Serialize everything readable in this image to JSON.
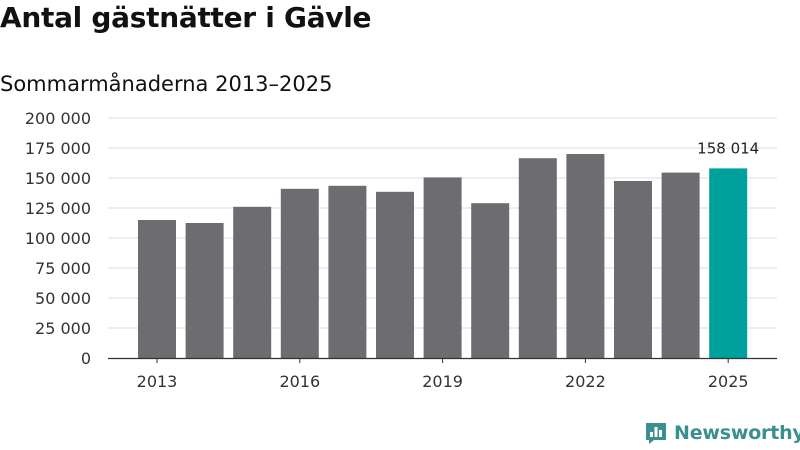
{
  "title": "Antal gästnätter i Gävle",
  "subtitle": "Sommarmånaderna 2013–2025",
  "brand": "Newsworthy",
  "colors": {
    "bar": "#6d6c71",
    "highlight": "#00a19a",
    "grid": "#dedede",
    "axis": "#333333",
    "brand": "#3a8f8f"
  },
  "icons": {
    "brand_logo": "newsworthy-logo-icon"
  },
  "chart_data": {
    "type": "bar",
    "categories": [
      "2013",
      "2014",
      "2015",
      "2016",
      "2017",
      "2018",
      "2019",
      "2020",
      "2021",
      "2022",
      "2023",
      "2024",
      "2025"
    ],
    "values": [
      115000,
      112500,
      126000,
      141000,
      143500,
      138500,
      150500,
      129000,
      166500,
      170000,
      147500,
      154500,
      158014
    ],
    "x_tick_labels": [
      "2013",
      "2016",
      "2019",
      "2022",
      "2025"
    ],
    "y_ticks": [
      0,
      25000,
      50000,
      75000,
      100000,
      125000,
      150000,
      175000,
      200000
    ],
    "y_tick_labels": [
      "0",
      "25 000",
      "50 000",
      "75 000",
      "100 000",
      "125 000",
      "150 000",
      "175 000",
      "200 000"
    ],
    "ylim": [
      0,
      200000
    ],
    "highlight_category": "2025",
    "data_labels": [
      {
        "category": "2025",
        "text": "158 014"
      }
    ],
    "grid": true,
    "legend": "none"
  }
}
